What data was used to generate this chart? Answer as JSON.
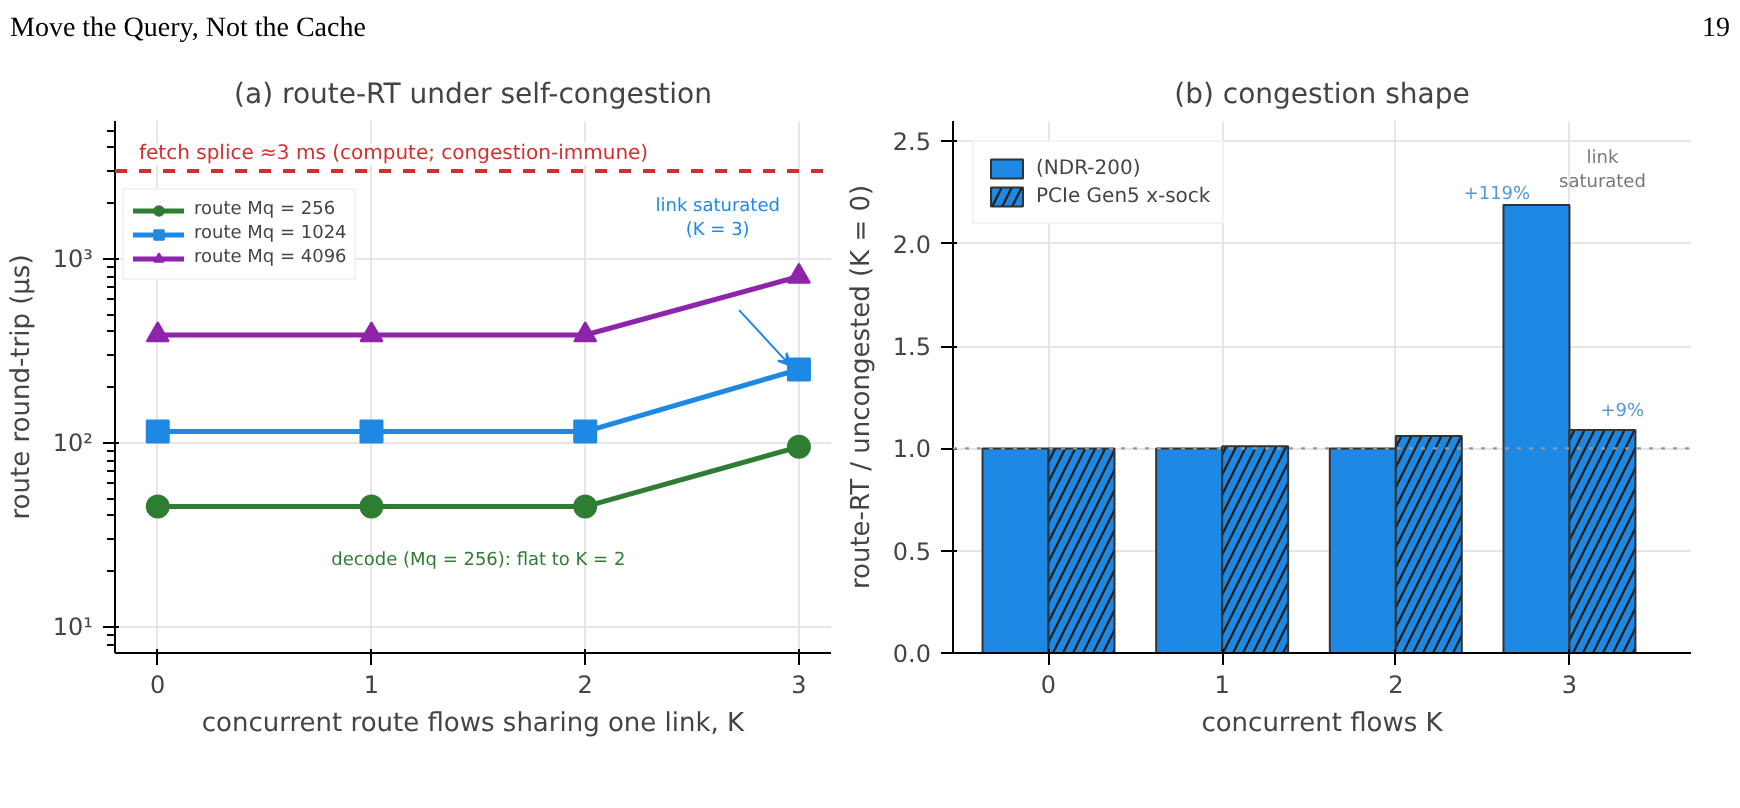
{
  "chart_data": [
    {
      "type": "line",
      "title": "(a) route-RT under self-congestion",
      "xlabel": "concurrent route flows sharing one link, K",
      "ylabel": "route round-trip (μs)",
      "x": [
        0,
        1,
        2,
        3
      ],
      "series": [
        {
          "name": "route Mq = 256",
          "color": "#2e7d32",
          "marker": "circle",
          "values": [
            45,
            45,
            45,
            95
          ]
        },
        {
          "name": "route Mq = 1024",
          "color": "#1e88e5",
          "marker": "square",
          "values": [
            115,
            115,
            115,
            250
          ]
        },
        {
          "name": "route Mq = 4096",
          "color": "#8e24aa",
          "marker": "triangle",
          "values": [
            385,
            385,
            385,
            800
          ]
        }
      ],
      "log": "y",
      "xlim": [
        -0.2,
        3.15
      ],
      "ylim": [
        7.2,
        5600
      ],
      "xticks": [
        0,
        1,
        2,
        3
      ],
      "yticks": [
        {
          "value": 10,
          "label": "10¹"
        },
        {
          "value": 100,
          "label": "10²"
        },
        {
          "value": 1000,
          "label": "10³"
        }
      ],
      "grid": true,
      "legend": "top left",
      "ref_lines": [
        {
          "axis": "y",
          "value": 3000,
          "label": "fetch splice ≈3 ms (compute; congestion-immune)",
          "color": "#d32f2f",
          "line_style": "dashed"
        }
      ],
      "annotations": [
        "Move the Query, Not the Cache",
        "19",
        "link saturated (K = 3)",
        "decode (Mq = 256): flat to K = 2"
      ]
    },
    {
      "type": "bar",
      "title": "(b) congestion shape",
      "xlabel": "concurrent flows K",
      "ylabel": "route-RT / uncongested (K = 0)",
      "categories": [
        "0",
        "1",
        "2",
        "3"
      ],
      "series": [
        {
          "name": "(NDR-200)",
          "color": "#1e88e5",
          "values": [
            1.0,
            1.0,
            1.0,
            2.19
          ]
        },
        {
          "name": "PCIe Gen5 x-sock",
          "color": "#1e88e5",
          "values": [
            1.0,
            1.01,
            1.06,
            1.09
          ]
        }
      ],
      "ylim": [
        0,
        2.6
      ],
      "yticks": [
        {
          "value": 0,
          "label": "0.0"
        },
        {
          "value": 0.5,
          "label": "0.5"
        },
        {
          "value": 1,
          "label": "1.0"
        },
        {
          "value": 1.5,
          "label": "1.5"
        },
        {
          "value": 2,
          "label": "2.0"
        },
        {
          "value": 2.5,
          "label": "2.5"
        }
      ],
      "grid": true,
      "legend": "top left",
      "ref_lines": [
        {
          "axis": "y",
          "value": 1.0,
          "color": "#999999",
          "line_style": "dotted"
        }
      ],
      "annotations": [
        {
          "text": "+119%",
          "x": "3",
          "y": 2.19
        },
        {
          "text": "link saturated",
          "x": "3",
          "y": 2.19
        },
        {
          "text": "+9%",
          "x": "3",
          "y": 1.09
        }
      ]
    }
  ]
}
